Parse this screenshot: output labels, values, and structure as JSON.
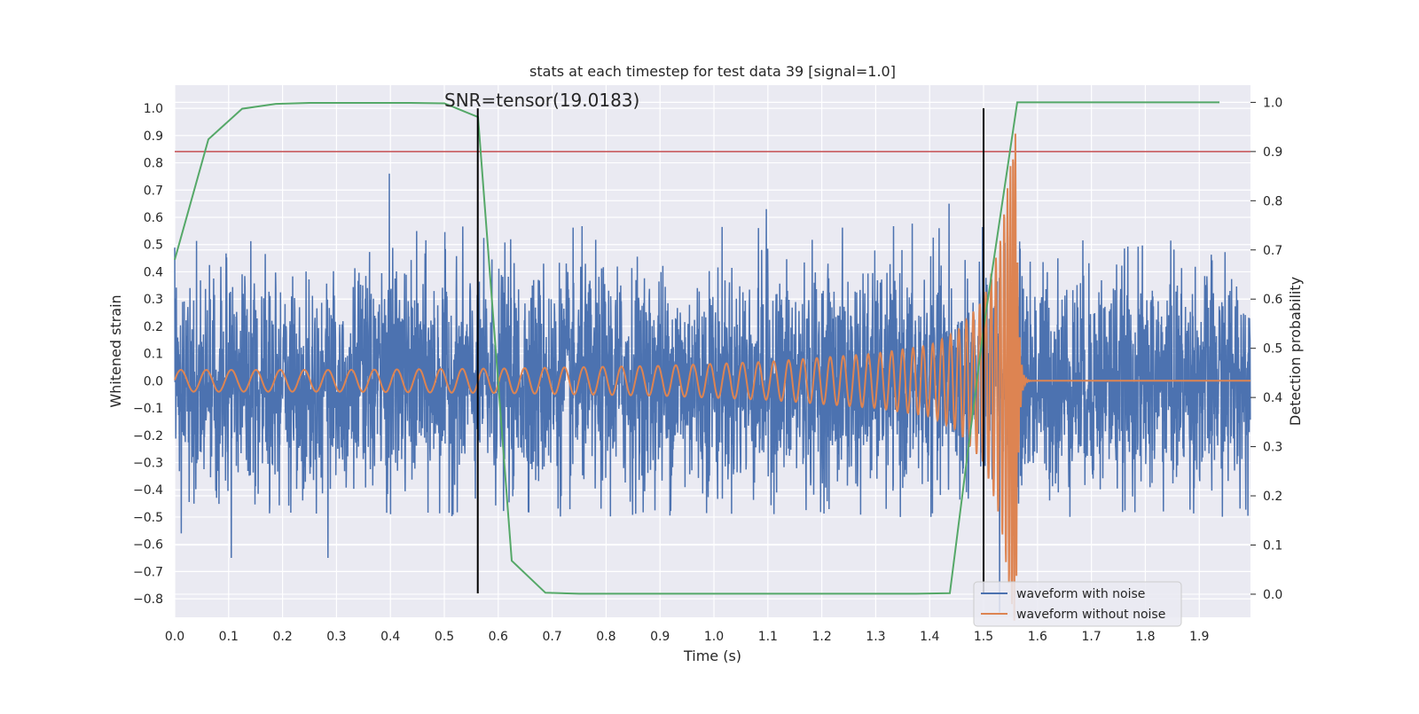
{
  "chart_data": {
    "type": "line",
    "title": "stats at each timestep for test data 39 [signal=1.0]",
    "xlabel": "Time (s)",
    "ylabel": "Whitened strain",
    "y2label": "Detection probability",
    "xlim": [
      0.0,
      1.995
    ],
    "ylim": [
      -0.868,
      1.085
    ],
    "y2lim": [
      -0.047,
      1.035
    ],
    "xticks": [
      "0.0",
      "0.1",
      "0.2",
      "0.3",
      "0.4",
      "0.5",
      "0.6",
      "0.7",
      "0.8",
      "0.9",
      "1.0",
      "1.1",
      "1.2",
      "1.3",
      "1.4",
      "1.5",
      "1.6",
      "1.7",
      "1.8",
      "1.9"
    ],
    "yticks": [
      "−0.8",
      "−0.7",
      "−0.6",
      "−0.5",
      "−0.4",
      "−0.3",
      "−0.2",
      "−0.1",
      "0.0",
      "0.1",
      "0.2",
      "0.3",
      "0.4",
      "0.5",
      "0.6",
      "0.7",
      "0.8",
      "0.9",
      "1.0"
    ],
    "y2ticks": [
      "0.0",
      "0.1",
      "0.2",
      "0.3",
      "0.4",
      "0.5",
      "0.6",
      "0.7",
      "0.8",
      "0.9",
      "1.0"
    ],
    "grid": true,
    "legend_position": "lower-right",
    "annotation": {
      "text": "SNR=tensor(19.0183)",
      "x": 0.5,
      "y": 1.0
    },
    "colors": {
      "noisy": "#4c72b0",
      "clean": "#dd8452",
      "probability": "#55a868",
      "threshold": "#c44e52",
      "marker": "#000000",
      "background": "#eaeaf2",
      "grid": "#ffffff"
    },
    "threshold": {
      "y2": 0.9
    },
    "vertical_markers": [
      {
        "x": 0.562,
        "ymin": -0.78,
        "ymax": 1.0
      },
      {
        "x": 1.5,
        "ymin": -0.78,
        "ymax": 1.0
      }
    ],
    "series": [
      {
        "name": "waveform with noise",
        "style": "noisy-gaussian",
        "sample_rate": 2048,
        "std": 0.2,
        "extremes": [
          {
            "x": 0.398,
            "y": 0.76
          },
          {
            "x": 1.097,
            "y": 0.63
          },
          {
            "x": 1.436,
            "y": 0.65
          },
          {
            "x": 0.012,
            "y": -0.56
          },
          {
            "x": 0.105,
            "y": -0.65
          },
          {
            "x": 0.284,
            "y": -0.65
          },
          {
            "x": 1.53,
            "y": -0.85
          }
        ]
      },
      {
        "name": "waveform without noise",
        "style": "chirp",
        "t_merger": 1.56,
        "x": [
          0.0,
          0.3,
          0.6,
          0.9,
          1.1,
          1.3,
          1.4,
          1.45,
          1.5,
          1.53,
          1.55,
          1.56
        ],
        "amplitude": [
          0.04,
          0.04,
          0.045,
          0.055,
          0.07,
          0.1,
          0.13,
          0.18,
          0.3,
          0.5,
          0.8,
          0.92
        ],
        "cycles_per_second": [
          21,
          23,
          26,
          30,
          35,
          45,
          56,
          66,
          90,
          125,
          190,
          250
        ]
      },
      {
        "name": "detection probability",
        "axis": "y2",
        "x": [
          0.0,
          0.0625,
          0.125,
          0.1875,
          0.25,
          0.3125,
          0.375,
          0.4375,
          0.5,
          0.5625,
          0.625,
          0.6875,
          0.75,
          0.8125,
          0.875,
          0.9375,
          1.0,
          1.0625,
          1.125,
          1.1875,
          1.25,
          1.3125,
          1.375,
          1.4375,
          1.5,
          1.5625,
          1.625,
          1.6875,
          1.75,
          1.8125,
          1.875,
          1.9375
        ],
        "values": [
          0.68,
          0.925,
          0.987,
          0.997,
          0.999,
          0.999,
          0.999,
          0.999,
          0.998,
          0.97,
          0.068,
          0.003,
          0.001,
          0.001,
          0.001,
          0.001,
          0.001,
          0.001,
          0.001,
          0.001,
          0.001,
          0.001,
          0.001,
          0.002,
          0.54,
          1.0,
          1.0,
          1.0,
          1.0,
          1.0,
          1.0,
          1.0
        ]
      }
    ]
  }
}
